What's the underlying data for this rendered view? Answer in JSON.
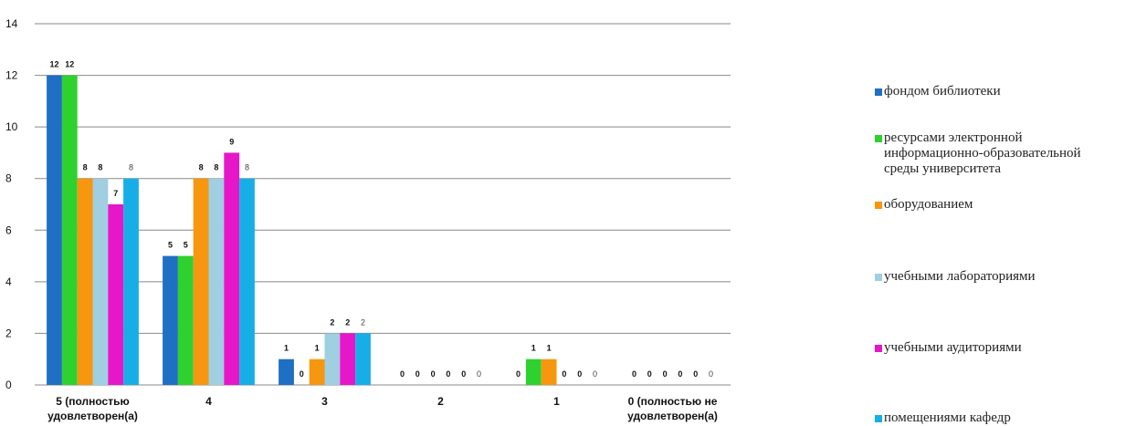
{
  "chart_data": {
    "type": "bar",
    "categories": [
      "5 (полностью удовлетворен(а)",
      "4",
      "3",
      "2",
      "1",
      "0 (полностью не удовлетворен(а)"
    ],
    "category_lines": [
      [
        "5 (полностью",
        "удовлетворен(а)"
      ],
      [
        "4"
      ],
      [
        "3"
      ],
      [
        "2"
      ],
      [
        "1"
      ],
      [
        "0 (полностью не",
        "удовлетворен(а)"
      ]
    ],
    "series": [
      {
        "name": "фондом библиотеки",
        "color": "#1f6fc4",
        "values": [
          12,
          5,
          1,
          0,
          0,
          0
        ]
      },
      {
        "name": "ресурсами электронной информационно-образовательной среды университета",
        "color": "#2ed12e",
        "values": [
          12,
          5,
          0,
          0,
          1,
          0
        ]
      },
      {
        "name": "оборудованием",
        "color": "#f7960f",
        "values": [
          8,
          8,
          1,
          0,
          1,
          0
        ]
      },
      {
        "name": "учебными лабораториями",
        "color": "#9fcfe0",
        "values": [
          8,
          8,
          2,
          0,
          0,
          0
        ]
      },
      {
        "name": "учебными аудиториями",
        "color": "#e617c9",
        "values": [
          7,
          9,
          2,
          0,
          0,
          0
        ]
      },
      {
        "name": "помещениями кафедр",
        "color": "#17aee8",
        "values": [
          8,
          8,
          2,
          0,
          0,
          0
        ]
      }
    ],
    "legend_labels": [
      "фондом библиотеки",
      "ресурсами электронной\nинформационно-образовательной\nсреды университета",
      "оборудованием",
      "учебными лабораториями",
      "учебными аудиториями",
      "помещениями кафедр"
    ],
    "yticks": [
      0,
      2,
      4,
      6,
      8,
      10,
      12,
      14
    ],
    "ylim": [
      0,
      14
    ],
    "grid": true,
    "legend_position": "right",
    "data_labels": true
  }
}
